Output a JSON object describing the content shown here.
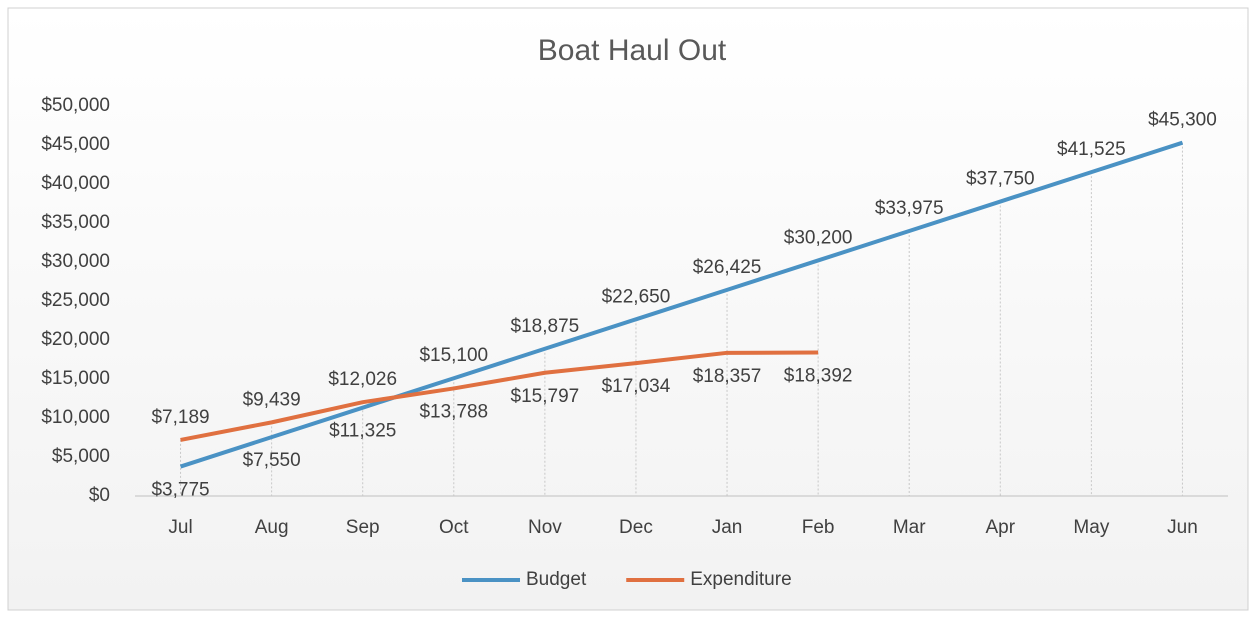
{
  "chart_data": {
    "type": "line",
    "title": "Boat Haul Out",
    "categories": [
      "Jul",
      "Aug",
      "Sep",
      "Oct",
      "Nov",
      "Dec",
      "Jan",
      "Feb",
      "Mar",
      "Apr",
      "May",
      "Jun"
    ],
    "series": [
      {
        "name": "Budget",
        "color": "#4a92c4",
        "values": [
          3775,
          7550,
          11325,
          15100,
          18875,
          22650,
          26425,
          30200,
          33975,
          37750,
          41525,
          45300
        ],
        "value_labels": [
          "$3,775",
          "$7,550",
          "$11,325",
          "$15,100",
          "$18,875",
          "$22,650",
          "$26,425",
          "$30,200",
          "$33,975",
          "$37,750",
          "$41,525",
          "$45,300"
        ]
      },
      {
        "name": "Expenditure",
        "color": "#e07040",
        "values": [
          7189,
          9439,
          12026,
          13788,
          15797,
          17034,
          18357,
          18392,
          null,
          null,
          null,
          null
        ],
        "value_labels": [
          "$7,189",
          "$9,439",
          "$12,026",
          "$13,788",
          "$15,797",
          "$17,034",
          "$18,357",
          "$18,392",
          null,
          null,
          null,
          null
        ]
      }
    ],
    "ylim": [
      0,
      50000
    ],
    "yticks": [
      {
        "value": 0,
        "label": "$0"
      },
      {
        "value": 5000,
        "label": "$5,000"
      },
      {
        "value": 10000,
        "label": "$10,000"
      },
      {
        "value": 15000,
        "label": "$15,000"
      },
      {
        "value": 20000,
        "label": "$20,000"
      },
      {
        "value": 25000,
        "label": "$25,000"
      },
      {
        "value": 30000,
        "label": "$30,000"
      },
      {
        "value": 35000,
        "label": "$35,000"
      },
      {
        "value": 40000,
        "label": "$40,000"
      },
      {
        "value": 45000,
        "label": "$45,000"
      },
      {
        "value": 50000,
        "label": "$50,000"
      }
    ],
    "legend": "bottom",
    "drop_lines": true
  }
}
